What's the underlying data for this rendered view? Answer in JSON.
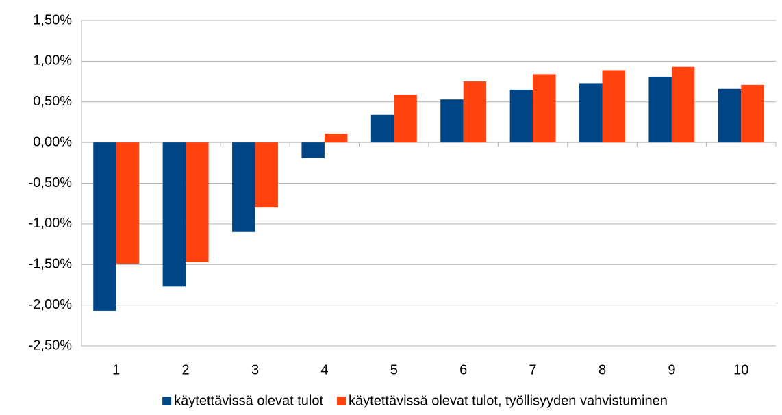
{
  "chart_data": {
    "type": "bar",
    "categories": [
      "1",
      "2",
      "3",
      "4",
      "5",
      "6",
      "7",
      "8",
      "9",
      "10"
    ],
    "series": [
      {
        "name": "käytettävissä olevat tulot",
        "color": "#004586",
        "values": [
          -2.07,
          -1.77,
          -1.1,
          -0.19,
          0.34,
          0.53,
          0.65,
          0.73,
          0.81,
          0.66
        ]
      },
      {
        "name": "käytettävissä olevat tulot, työllisyyden vahvistuminen",
        "color": "#ff420e",
        "values": [
          -1.49,
          -1.47,
          -0.8,
          0.11,
          0.59,
          0.75,
          0.84,
          0.89,
          0.93,
          0.71
        ]
      }
    ],
    "ylim": [
      -2.5,
      1.5
    ],
    "yticks": [
      {
        "value": -2.5,
        "label": "-2,50%"
      },
      {
        "value": -2.0,
        "label": "-2,00%"
      },
      {
        "value": -1.5,
        "label": "-1,50%"
      },
      {
        "value": -1.0,
        "label": "-1,00%"
      },
      {
        "value": -0.5,
        "label": "-0,50%"
      },
      {
        "value": 0,
        "label": "0,00%"
      },
      {
        "value": 0.5,
        "label": "0,50%"
      },
      {
        "value": 1.0,
        "label": "1,00%"
      },
      {
        "value": 1.5,
        "label": "1,50%"
      }
    ],
    "grid": true,
    "legend": "bottom"
  }
}
